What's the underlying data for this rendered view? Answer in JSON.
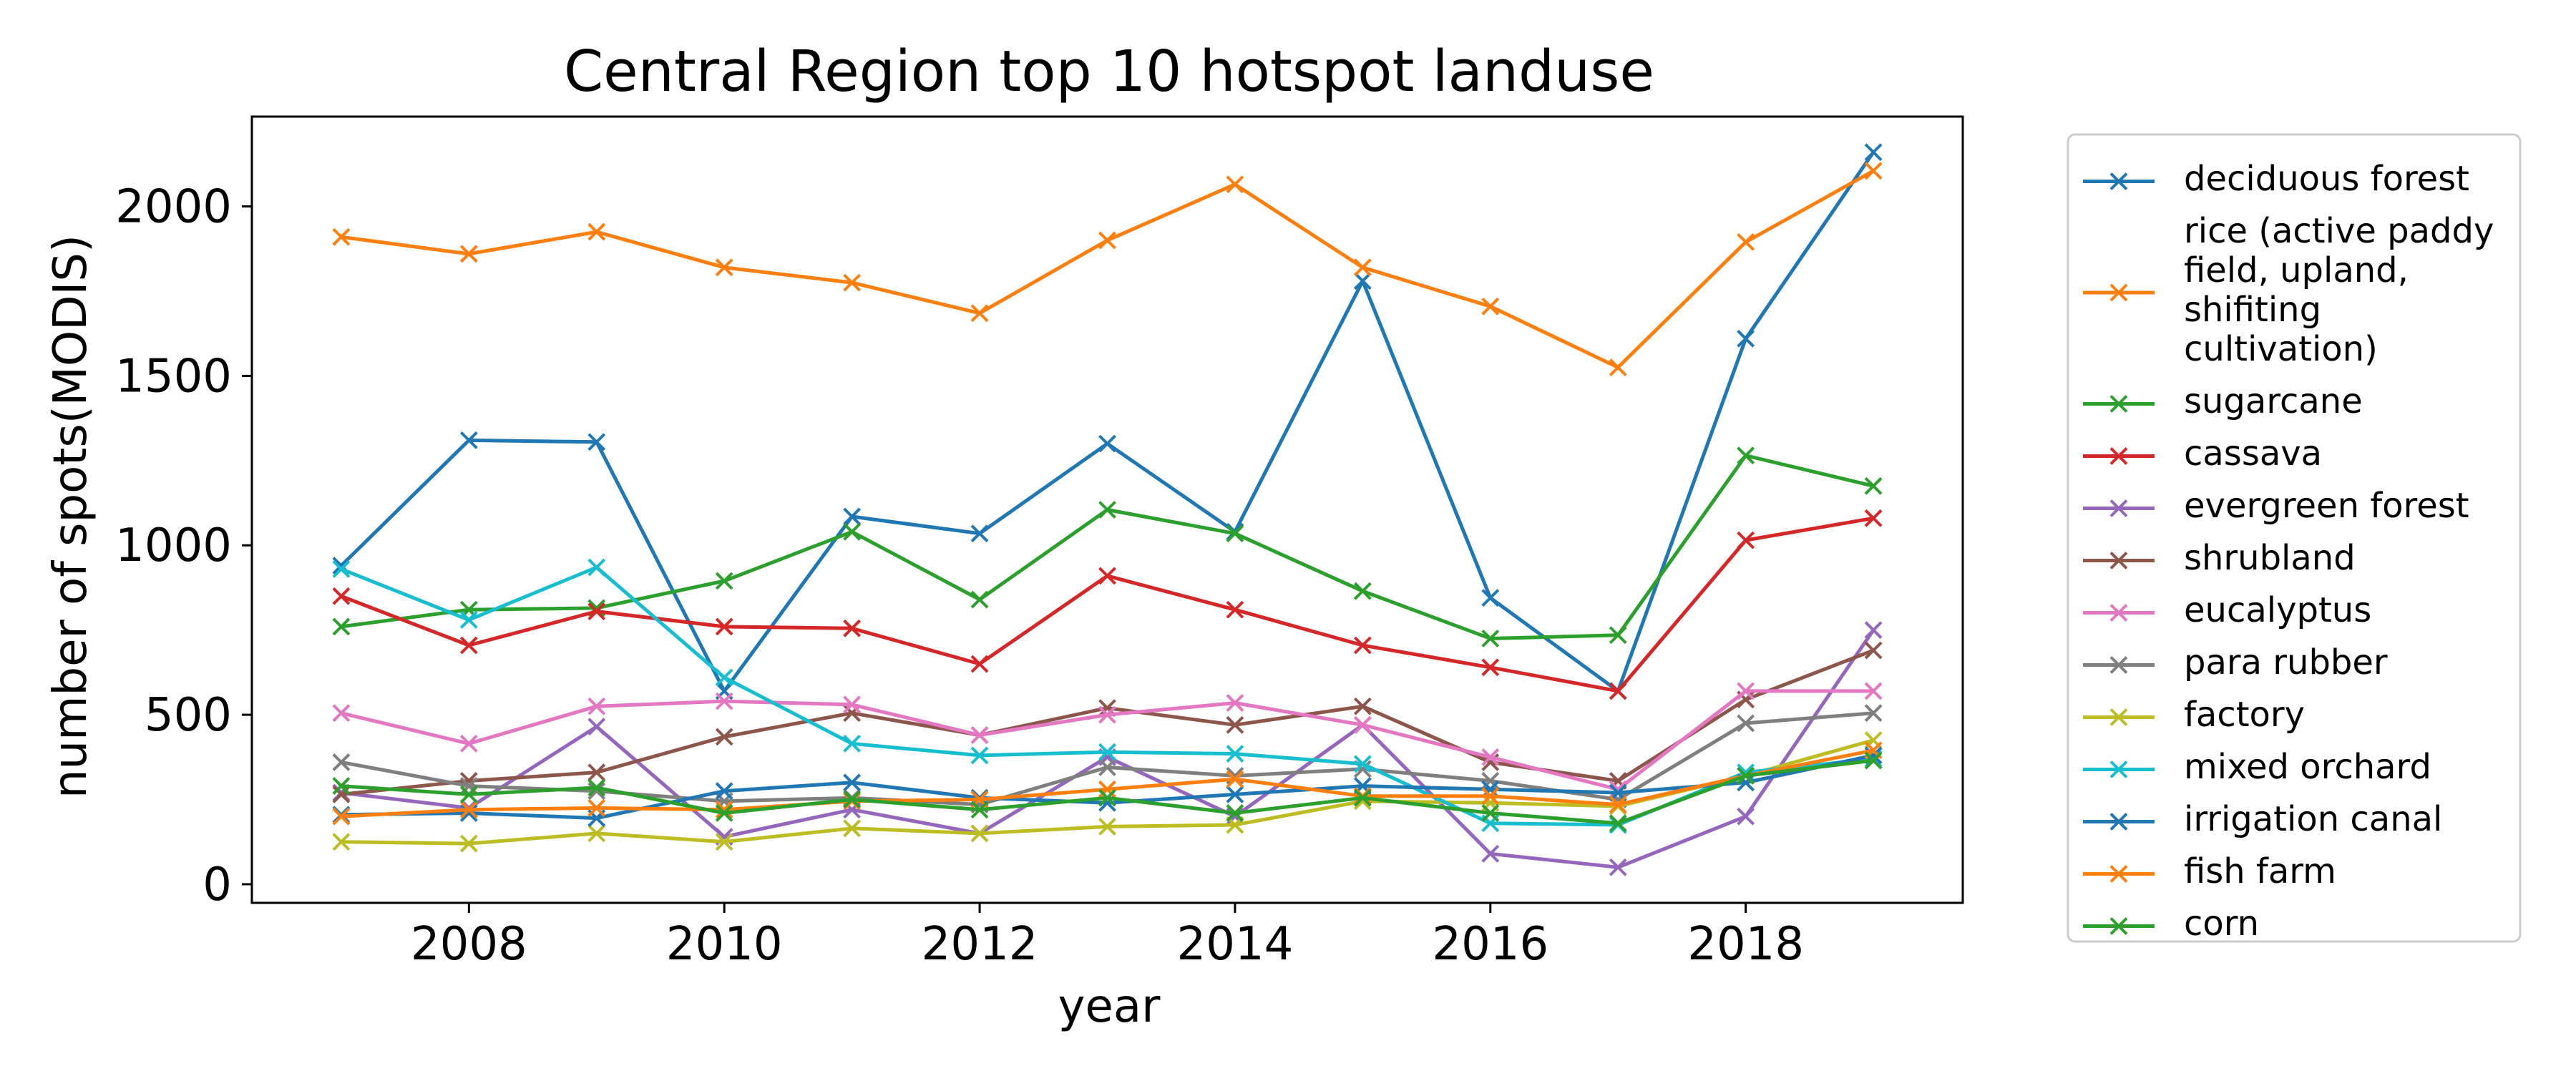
{
  "chart_data": {
    "type": "line",
    "title": "Central Region top 10 hotspot landuse",
    "xlabel": "year",
    "ylabel": "number of spots(MODIS)",
    "xlim": [
      2006.3,
      2019.7
    ],
    "ylim": [
      -55,
      2265
    ],
    "x_ticks": [
      2008,
      2010,
      2012,
      2014,
      2016,
      2018
    ],
    "y_ticks": [
      0,
      500,
      1000,
      1500,
      2000
    ],
    "grid": false,
    "legend_position": "outside-right",
    "marker": "x",
    "x": [
      2007,
      2008,
      2009,
      2010,
      2011,
      2012,
      2013,
      2014,
      2015,
      2016,
      2017,
      2018,
      2019
    ],
    "series": [
      {
        "name": "deciduous forest",
        "color": "#1f77b4",
        "values": [
          940,
          1310,
          1305,
          570,
          1085,
          1035,
          1300,
          1040,
          1780,
          845,
          570,
          1610,
          2160
        ]
      },
      {
        "name": "rice (active paddy field, upland, shifiting cultivation)",
        "legend_lines": [
          "rice (active paddy",
          "field, upland,",
          "shifiting",
          "cultivation)"
        ],
        "color": "#ff7f0e",
        "values": [
          1910,
          1860,
          1925,
          1820,
          1775,
          1685,
          1900,
          2065,
          1820,
          1705,
          1525,
          1895,
          2105
        ]
      },
      {
        "name": "sugarcane",
        "color": "#2ca02c",
        "values": [
          760,
          810,
          815,
          895,
          1040,
          840,
          1105,
          1035,
          865,
          725,
          735,
          1265,
          1175
        ]
      },
      {
        "name": "cassava",
        "color": "#d62728",
        "values": [
          850,
          705,
          805,
          760,
          755,
          650,
          910,
          810,
          705,
          640,
          570,
          1015,
          1080
        ]
      },
      {
        "name": "evergreen forest",
        "color": "#9467bd",
        "values": [
          270,
          225,
          465,
          140,
          220,
          150,
          375,
          200,
          470,
          90,
          50,
          200,
          750
        ]
      },
      {
        "name": "shrubland",
        "color": "#8c564b",
        "values": [
          265,
          305,
          330,
          435,
          505,
          440,
          520,
          470,
          525,
          360,
          305,
          545,
          690
        ]
      },
      {
        "name": "eucalyptus",
        "color": "#e377c2",
        "values": [
          505,
          415,
          525,
          540,
          530,
          440,
          500,
          535,
          470,
          375,
          280,
          570,
          570
        ]
      },
      {
        "name": "para rubber",
        "color": "#7f7f7f",
        "values": [
          360,
          290,
          275,
          245,
          255,
          235,
          345,
          320,
          340,
          305,
          250,
          475,
          505
        ]
      },
      {
        "name": "factory",
        "color": "#bcbd22",
        "values": [
          125,
          120,
          150,
          125,
          165,
          150,
          170,
          175,
          245,
          240,
          230,
          320,
          425
        ]
      },
      {
        "name": "mixed orchard",
        "color": "#17becf",
        "values": [
          930,
          780,
          935,
          610,
          415,
          380,
          390,
          385,
          355,
          180,
          175,
          330,
          370
        ]
      },
      {
        "name": "irrigation canal",
        "color": "#1f77b4",
        "values": [
          205,
          210,
          195,
          275,
          300,
          255,
          240,
          265,
          290,
          280,
          270,
          300,
          380
        ]
      },
      {
        "name": "fish farm",
        "color": "#ff7f0e",
        "values": [
          200,
          220,
          225,
          220,
          245,
          250,
          280,
          310,
          260,
          260,
          235,
          320,
          395
        ]
      },
      {
        "name": "corn",
        "color": "#2ca02c",
        "values": [
          290,
          265,
          285,
          210,
          250,
          220,
          255,
          210,
          255,
          210,
          180,
          320,
          365
        ]
      }
    ]
  }
}
